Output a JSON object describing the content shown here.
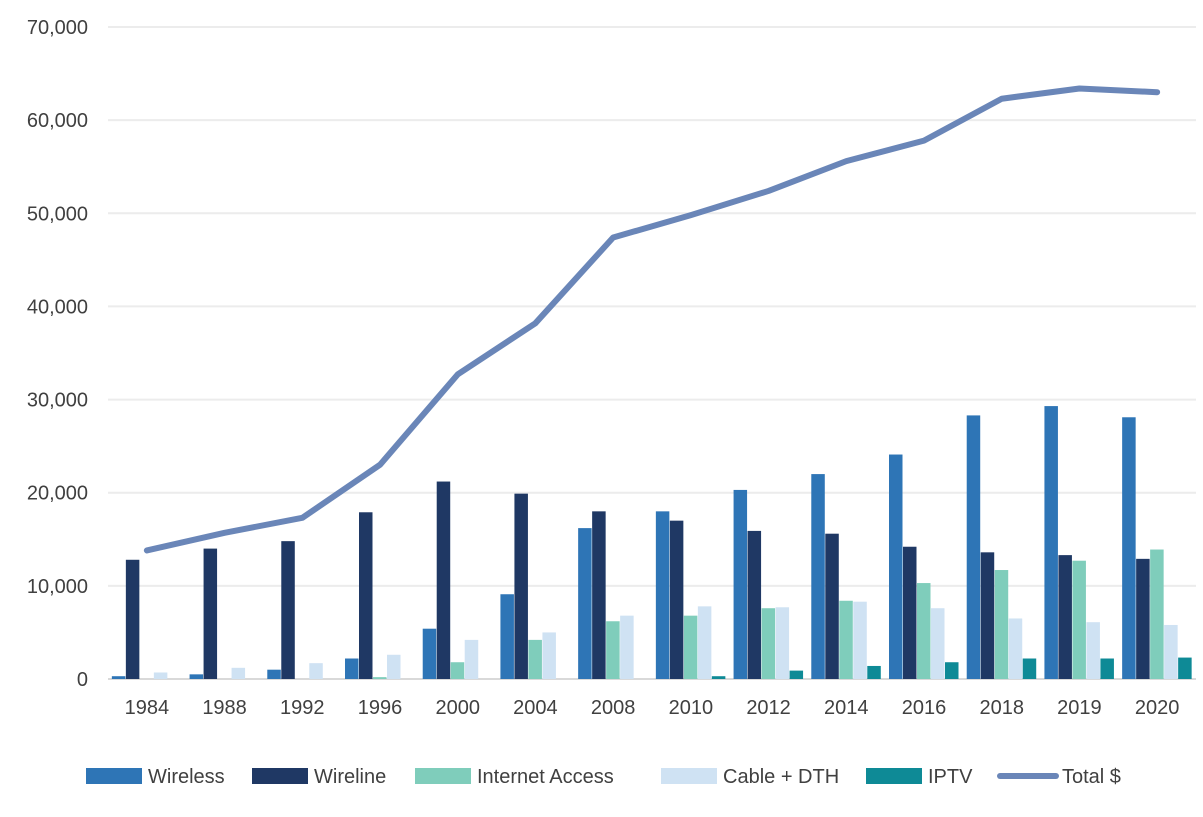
{
  "chart_data": {
    "type": "bar",
    "categories": [
      "1984",
      "1988",
      "1992",
      "1996",
      "2000",
      "2004",
      "2008",
      "2010",
      "2012",
      "2014",
      "2016",
      "2018",
      "2019",
      "2020"
    ],
    "series": [
      {
        "name": "Wireless",
        "kind": "bar",
        "color": "#2E75B6",
        "values": [
          300,
          500,
          1000,
          2200,
          5400,
          9100,
          16200,
          18000,
          20300,
          22000,
          24100,
          28300,
          29300,
          28100
        ]
      },
      {
        "name": "Wireline",
        "kind": "bar",
        "color": "#1F3864",
        "values": [
          12800,
          14000,
          14800,
          17900,
          21200,
          19900,
          18000,
          17000,
          15900,
          15600,
          14200,
          13600,
          13300,
          12900
        ]
      },
      {
        "name": "Internet Access",
        "kind": "bar",
        "color": "#7FCDBB",
        "values": [
          0,
          0,
          0,
          200,
          1800,
          4200,
          6200,
          6800,
          7600,
          8400,
          10300,
          11700,
          12700,
          13900
        ]
      },
      {
        "name": "Cable + DTH",
        "kind": "bar",
        "color": "#CFE2F3",
        "values": [
          700,
          1200,
          1700,
          2600,
          4200,
          5000,
          6800,
          7800,
          7700,
          8300,
          7600,
          6500,
          6100,
          5800
        ]
      },
      {
        "name": "IPTV",
        "kind": "bar",
        "color": "#0E8A96",
        "values": [
          0,
          0,
          0,
          0,
          0,
          0,
          0,
          300,
          900,
          1400,
          1800,
          2200,
          2200,
          2300
        ]
      },
      {
        "name": "Total $",
        "kind": "line",
        "color": "#6A86B8",
        "values": [
          13800,
          15700,
          17300,
          23000,
          32700,
          38200,
          47400,
          49800,
          52400,
          55600,
          57800,
          62300,
          63400,
          63000
        ]
      }
    ],
    "yaxis": {
      "min": 0,
      "max": 70000,
      "ticks": [
        0,
        10000,
        20000,
        30000,
        40000,
        50000,
        60000,
        70000
      ],
      "tick_labels": [
        "0",
        "10,000",
        "20,000",
        "30,000",
        "40,000",
        "50,000",
        "60,000",
        "70,000"
      ]
    },
    "grid": true,
    "legend_position": "bottom"
  }
}
